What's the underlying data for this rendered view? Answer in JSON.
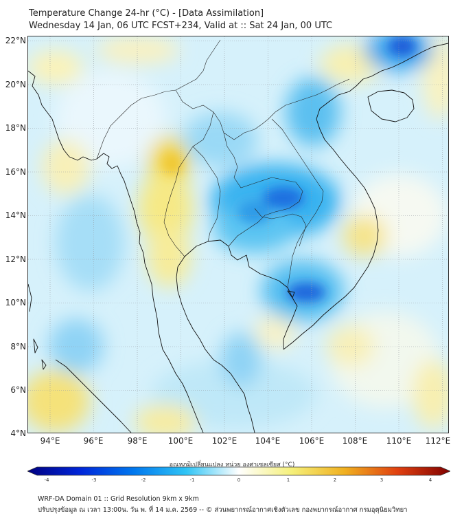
{
  "header": {
    "title_line1": "Temperature Change 24-hr (°C) - [Data Assimilation]",
    "title_line2": "Wednesday 14 Jan, 06 UTC FCST+234, Valid at :: Sat 24 Jan, 00 UTC"
  },
  "map": {
    "lat_labels": [
      "22°N",
      "20°N",
      "18°N",
      "16°N",
      "14°N",
      "12°N",
      "10°N",
      "8°N",
      "6°N",
      "4°N"
    ],
    "lon_labels": [
      "94°E",
      "96°E",
      "98°E",
      "100°E",
      "102°E",
      "104°E",
      "106°E",
      "108°E",
      "110°E",
      "112°E"
    ],
    "colors": {
      "warm": "#f4e04a",
      "cool": "#2ba8f0",
      "cold": "#0a3fd0",
      "coast": "#111111",
      "grid": "#9aa0a6"
    }
  },
  "colorbar": {
    "title": "อุณหภูมิเปลี่ยนแปลง หน่วย องศาเซลเซียส (°C)",
    "ticks": [
      "-4",
      "-3",
      "-2",
      "-1",
      "0",
      "1",
      "2",
      "3",
      "4"
    ],
    "colors": [
      "#000080",
      "#0026d9",
      "#0077ee",
      "#2fc4f5",
      "#ffffff",
      "#f5f07a",
      "#f0b020",
      "#e04010",
      "#800000"
    ]
  },
  "footer": {
    "line1": "WRF-DA Domain 01 :: Grid Resolution 9km x 9km",
    "line2": "ปรับปรุงข้อมูล ณ เวลา 13:00น. วัน พ. ที่ 14 ม.ค. 2569 -- © ส่วนพยากรณ์อากาศเชิงตัวเลข กองพยากรณ์อากาศ กรมอุตุนิยมวิทยา"
  }
}
